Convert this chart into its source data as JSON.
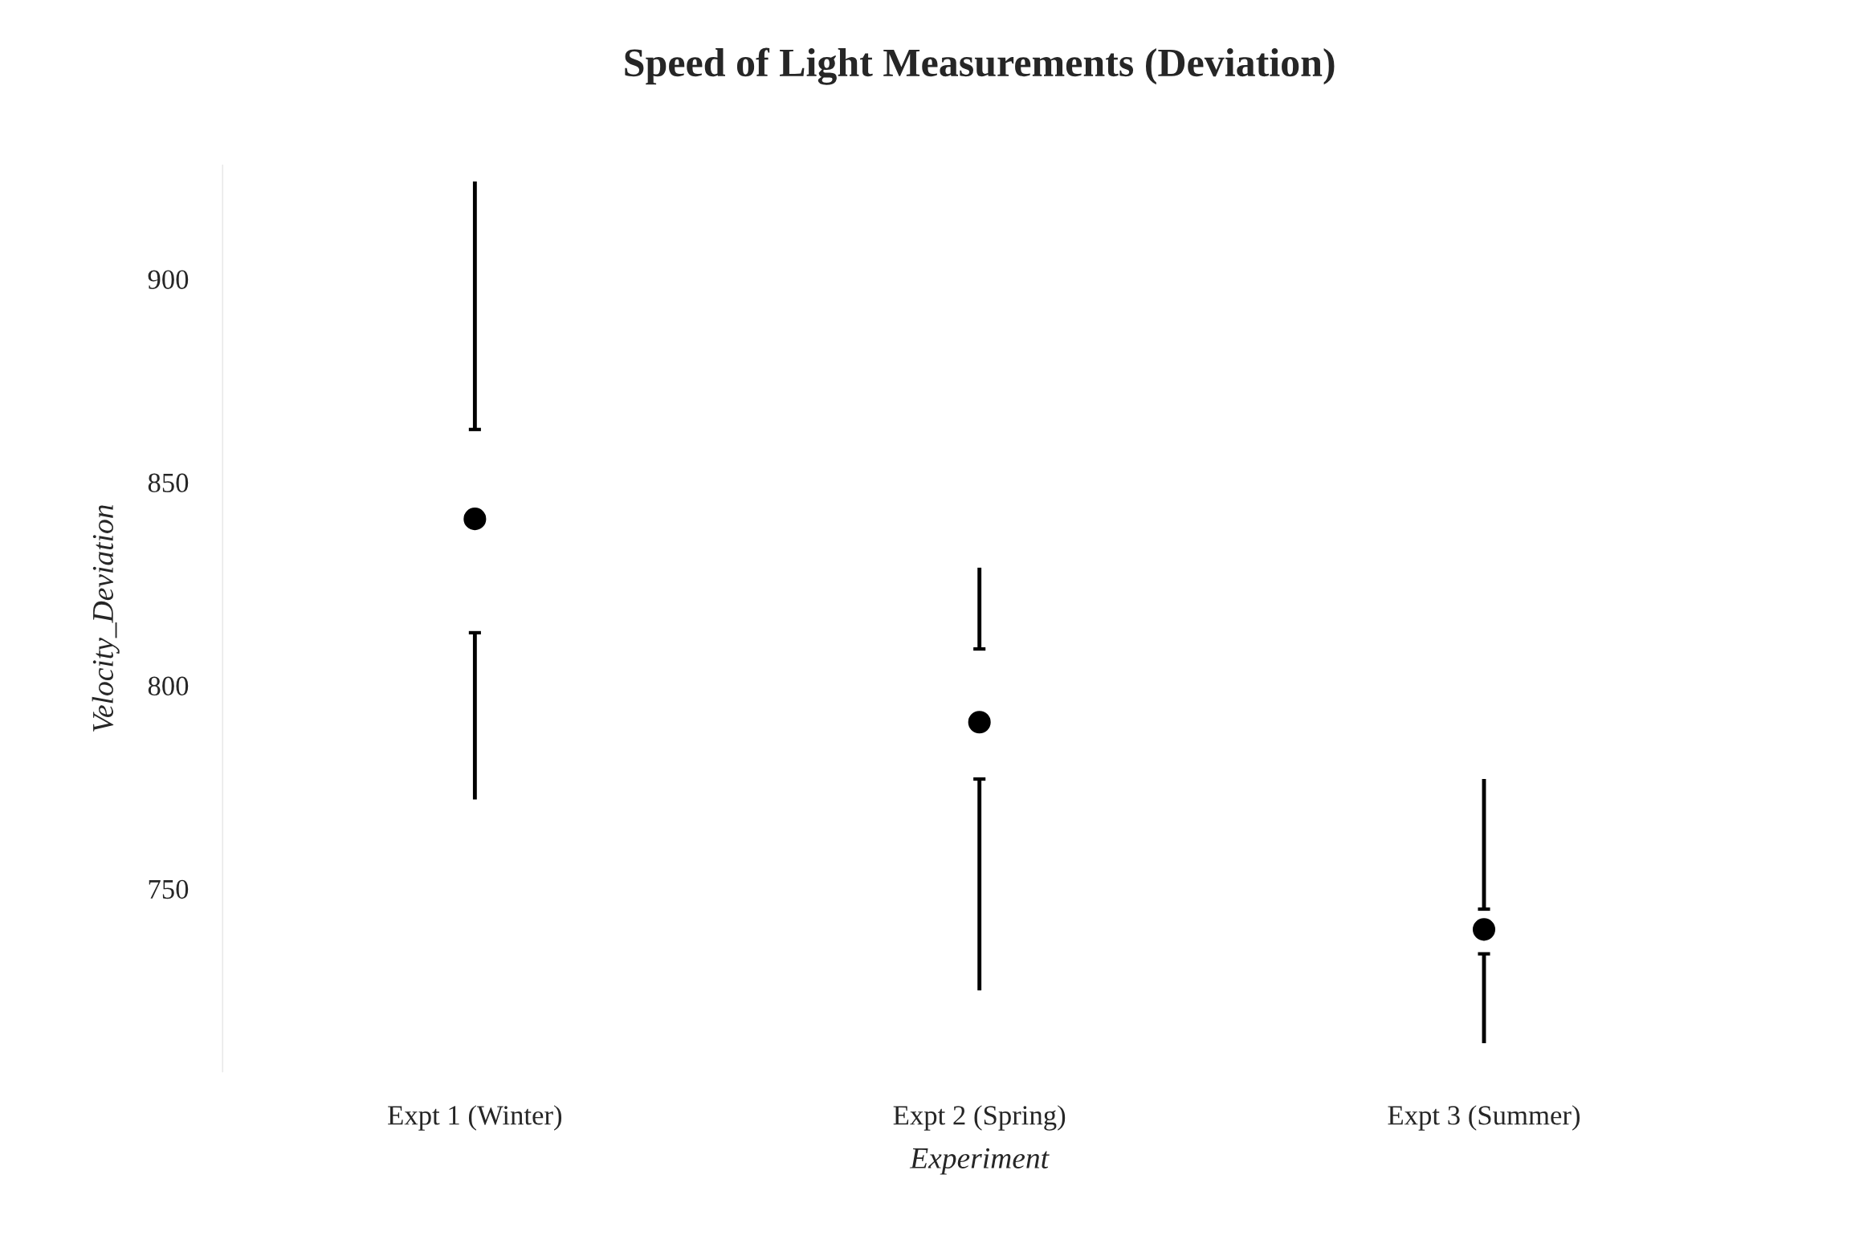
{
  "chart_data": {
    "type": "box",
    "title": "Speed of Light Measurements (Deviation)",
    "xlabel": "Experiment",
    "ylabel": "Velocity_Deviation",
    "categories": [
      "Expt 1 (Winter)",
      "Expt 2 (Spring)",
      "Expt 3 (Summer)"
    ],
    "boxes": [
      {
        "low": 772,
        "q1": 813,
        "median": 841,
        "q3": 863,
        "high": 924
      },
      {
        "low": 725,
        "q1": 777,
        "median": 791,
        "q3": 809,
        "high": 829
      },
      {
        "low": 712,
        "q1": 734,
        "median": 740,
        "q3": 745,
        "high": 777
      }
    ],
    "color": "#000000",
    "ylim": [
      705,
      928
    ],
    "yticks": [
      750,
      800,
      850,
      900
    ],
    "marker": "circle"
  }
}
